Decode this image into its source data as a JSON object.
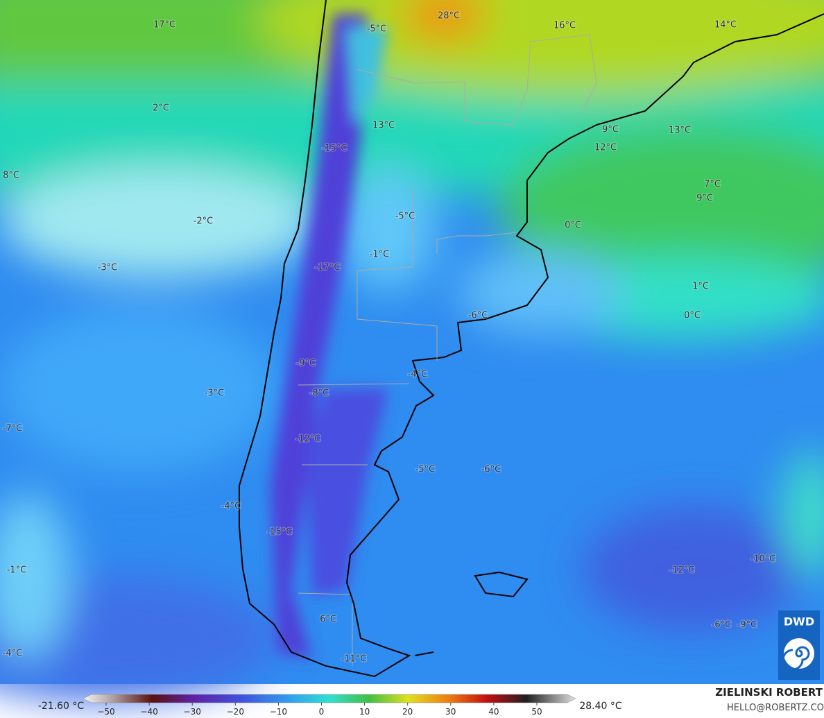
{
  "labels": [
    "17°C",
    "28°C",
    "16°C",
    "14°C",
    "-5°C",
    "2°C",
    "13°C",
    "9°C",
    "13°C",
    "12°C",
    "-15°C",
    "8°C",
    "7°C",
    "9°C",
    "-2°C",
    "-5°C",
    "0°C",
    "-1°C",
    "-3°C",
    "-17°C",
    "1°C",
    "0°C",
    "-6°C",
    "-9°C",
    "-4°C",
    "-3°C",
    "-8°C",
    "-7°C",
    "-12°C",
    "-5°C",
    "-6°C",
    "-4°C",
    "-15°C",
    "-10°C",
    "-1°C",
    "-12°C",
    "-6°C",
    "-9°C",
    "6°C",
    "-4°C",
    "-11°C"
  ],
  "colorbar": {
    "min_label": "-21.60 °C",
    "max_label": "28.40 °C",
    "ticks": [
      "−50",
      "−40",
      "−30",
      "−20",
      "−10",
      "0",
      "10",
      "20",
      "30",
      "40",
      "50"
    ]
  },
  "credit": {
    "author": "ZIELINSKI ROBERT",
    "contact": "HELLO@ROBERTZ.CO",
    "logo": "DWD"
  }
}
